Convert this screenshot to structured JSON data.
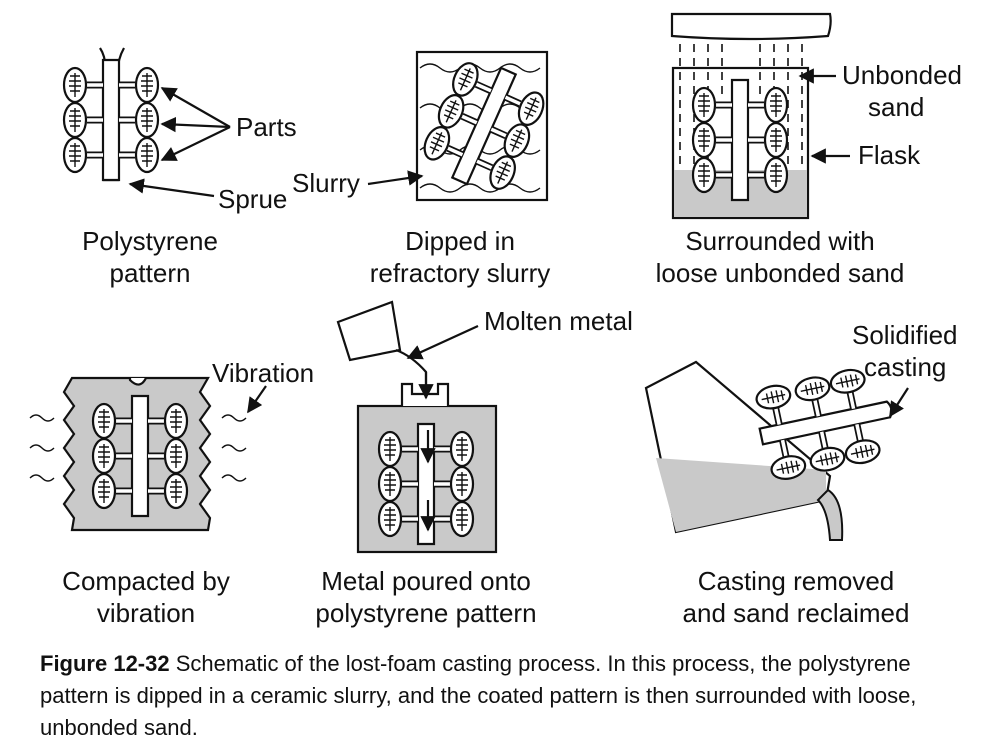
{
  "panels": {
    "p1": {
      "label_parts": "Parts",
      "label_sprue": "Sprue",
      "caption": [
        "Polystyrene",
        "pattern"
      ]
    },
    "p2": {
      "label_slurry": "Slurry",
      "caption": [
        "Dipped in",
        "refractory slurry"
      ]
    },
    "p3": {
      "label_unbonded": [
        "Unbonded",
        "sand"
      ],
      "label_flask": "Flask",
      "caption": [
        "Surrounded with",
        "loose unbonded sand"
      ]
    },
    "p4": {
      "label_vibration": "Vibration",
      "caption": [
        "Compacted by",
        "vibration"
      ]
    },
    "p5": {
      "label_molten": "Molten metal",
      "caption": [
        "Metal poured onto",
        "polystyrene pattern"
      ]
    },
    "p6": {
      "label_solidified": [
        "Solidified",
        "casting"
      ],
      "caption": [
        "Casting removed",
        "and sand reclaimed"
      ]
    }
  },
  "figure_caption": {
    "number": "Figure 12-32",
    "text": "Schematic of the lost-foam casting process. In this process, the polystyrene pattern is dipped in a ceramic slurry, and the coated pattern is then surrounded with loose, unbonded sand."
  },
  "colors": {
    "sand": "#c9c9c9",
    "ink": "#111111"
  }
}
